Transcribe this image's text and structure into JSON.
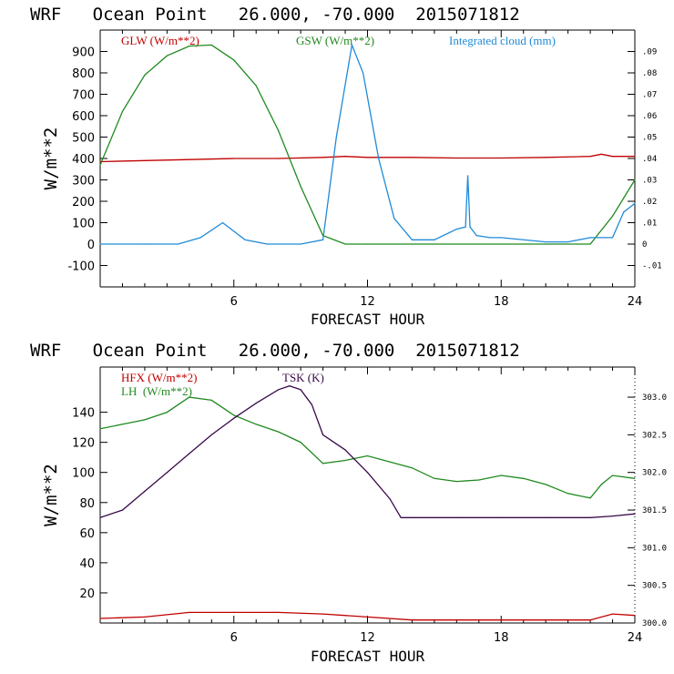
{
  "colors": {
    "red": "#c00000",
    "green": "#1f8a1f",
    "blue": "#1f8ad8",
    "purple": "#3a0a4a",
    "axis": "#000000"
  },
  "chart_data": [
    {
      "type": "line",
      "title": "WRF   Ocean Point   26.000, -70.000  2015071812",
      "xlabel": "FORECAST HOUR",
      "ylabel": "W/m**2",
      "xlim": [
        0,
        24
      ],
      "ylim": [
        -200,
        1000
      ],
      "y2lim": [
        -0.02,
        0.1
      ],
      "xticks": [
        "6",
        "12",
        "18",
        "24"
      ],
      "yticks": [
        "-100",
        "0",
        "100",
        "200",
        "300",
        "400",
        "500",
        "600",
        "700",
        "800",
        "900"
      ],
      "y2ticks": [
        "-.01",
        "0",
        ".01",
        ".02",
        ".03",
        ".04",
        ".05",
        ".06",
        ".07",
        ".08",
        ".09"
      ],
      "legend": [
        "GLW (W/m**2)",
        "GSW (W/m**2)",
        "Integrated cloud (mm)"
      ],
      "series": [
        {
          "name": "GLW (W/m**2)",
          "color": "red",
          "axis": "left",
          "x": [
            0,
            2,
            4,
            6,
            8,
            10,
            11,
            12,
            14,
            16,
            18,
            20,
            22,
            22.5,
            23,
            24
          ],
          "y": [
            385,
            390,
            395,
            400,
            400,
            405,
            410,
            405,
            405,
            402,
            402,
            405,
            410,
            420,
            410,
            410
          ]
        },
        {
          "name": "GSW (W/m**2)",
          "color": "green",
          "axis": "left",
          "x": [
            0,
            1,
            2,
            3,
            4,
            5,
            6,
            7,
            8,
            9,
            10,
            11,
            12,
            14,
            16,
            18,
            20,
            22,
            23,
            24
          ],
          "y": [
            370,
            620,
            790,
            880,
            925,
            930,
            860,
            740,
            530,
            270,
            40,
            0,
            0,
            0,
            0,
            0,
            0,
            0,
            130,
            300
          ]
        },
        {
          "name": "Integrated cloud (mm)",
          "color": "blue",
          "axis": "right",
          "x": [
            0,
            2,
            3.5,
            4.5,
            5.5,
            6.5,
            7.5,
            9,
            10,
            10.6,
            11.3,
            11.8,
            12.5,
            13.2,
            14,
            15,
            16,
            16.4,
            16.5,
            16.6,
            16.9,
            17.5,
            18,
            20,
            21,
            22,
            23,
            23.5,
            24
          ],
          "y": [
            0,
            0,
            0,
            0.003,
            0.01,
            0.002,
            0,
            0,
            0.002,
            0.05,
            0.093,
            0.08,
            0.04,
            0.012,
            0.002,
            0.002,
            0.007,
            0.008,
            0.032,
            0.008,
            0.004,
            0.003,
            0.003,
            0.001,
            0.001,
            0.003,
            0.003,
            0.015,
            0.019
          ]
        }
      ]
    },
    {
      "type": "line",
      "title": "WRF   Ocean Point   26.000, -70.000  2015071812",
      "xlabel": "FORECAST HOUR",
      "ylabel": "W/m**2",
      "xlim": [
        0,
        24
      ],
      "ylim": [
        0,
        170
      ],
      "y2lim": [
        300.0,
        303.4
      ],
      "xticks": [
        "6",
        "12",
        "18",
        "24"
      ],
      "yticks": [
        "20",
        "40",
        "60",
        "80",
        "100",
        "120",
        "140"
      ],
      "y2ticks": [
        "300.0",
        "300.5",
        "301.0",
        "301.5",
        "302.0",
        "302.5",
        "303.0"
      ],
      "legend": [
        "HFX (W/m**2)",
        "LH  (W/m**2)",
        "TSK (K)"
      ],
      "series": [
        {
          "name": "HFX (W/m**2)",
          "color": "red",
          "axis": "left",
          "x": [
            0,
            2,
            4,
            6,
            8,
            10,
            12,
            14,
            16,
            18,
            20,
            22,
            23,
            24
          ],
          "y": [
            3,
            4,
            7,
            7,
            7,
            6,
            4,
            2,
            2,
            2,
            2,
            2,
            6,
            5
          ]
        },
        {
          "name": "LH  (W/m**2)",
          "color": "green",
          "axis": "left",
          "x": [
            0,
            1,
            2,
            3,
            4,
            5,
            6,
            7,
            8,
            9,
            10,
            11,
            12,
            13,
            14,
            15,
            16,
            17,
            18,
            19,
            20,
            21,
            22,
            22.5,
            23,
            24
          ],
          "y": [
            129,
            132,
            135,
            140,
            150,
            148,
            138,
            132,
            127,
            120,
            106,
            108,
            111,
            107,
            103,
            96,
            94,
            95,
            98,
            96,
            92,
            86,
            83,
            92,
            98,
            96
          ]
        },
        {
          "name": "TSK (K)",
          "color": "purple",
          "axis": "right",
          "x": [
            0,
            1,
            2,
            3,
            4,
            5,
            6,
            7,
            8,
            8.5,
            9,
            9.5,
            10,
            11,
            12,
            13,
            13.5,
            14,
            16,
            18,
            20,
            22,
            23,
            24
          ],
          "y": [
            301.4,
            301.5,
            301.75,
            302.0,
            302.25,
            302.5,
            302.72,
            302.92,
            303.1,
            303.15,
            303.1,
            302.9,
            302.5,
            302.3,
            302.0,
            301.65,
            301.4,
            301.4,
            301.4,
            301.4,
            301.4,
            301.4,
            301.42,
            301.45
          ]
        }
      ]
    }
  ]
}
